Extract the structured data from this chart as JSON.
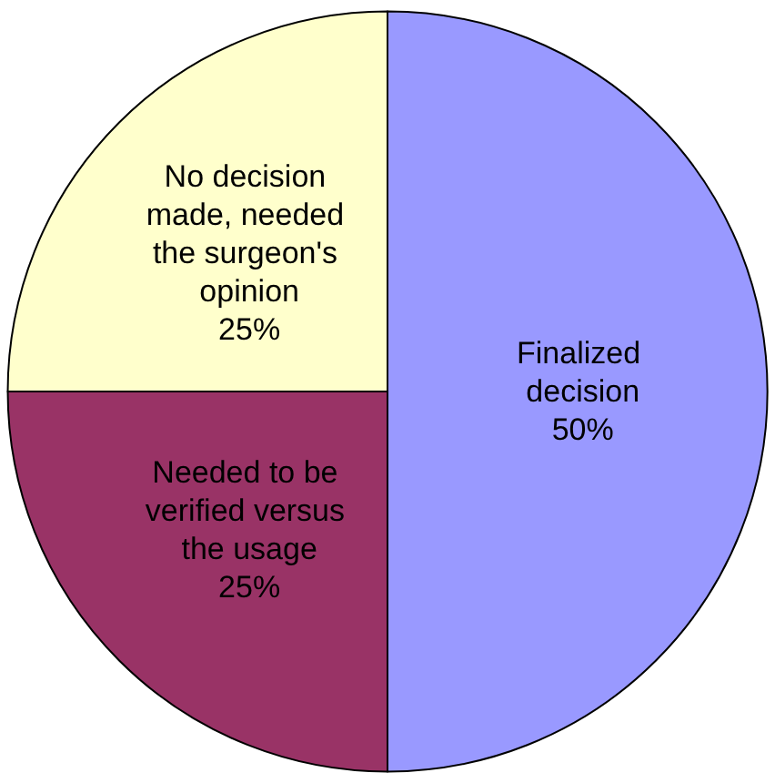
{
  "chart_data": {
    "type": "pie",
    "categories": [
      "Finalized decision",
      "Needed to be verified versus the usage",
      "No decision made, needed the surgeon's opinion"
    ],
    "values": [
      50,
      25,
      25
    ],
    "colors": [
      "#9999ff",
      "#993366",
      "#ffffcc"
    ],
    "value_labels": [
      "50%",
      "25%",
      "25%"
    ],
    "legend": false
  }
}
